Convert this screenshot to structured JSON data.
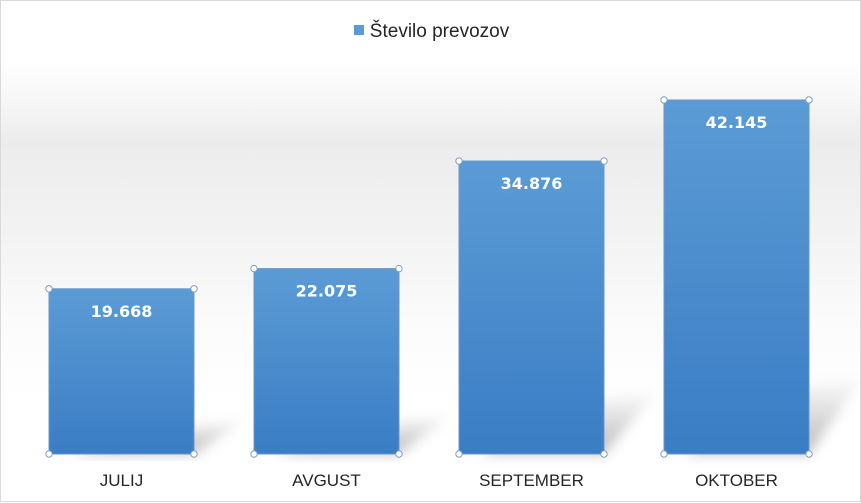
{
  "chart_data": {
    "type": "bar",
    "categories": [
      "JULIJ",
      "AVGUST",
      "SEPTEMBER",
      "OKTOBER"
    ],
    "series": [
      {
        "name": "Število prevozov",
        "values": [
          19668,
          22075,
          34876,
          42145
        ],
        "labels": [
          "19.668",
          "22.075",
          "34.876",
          "42.145"
        ]
      }
    ],
    "legend_position": "top-center",
    "ylim": [
      0,
      50000
    ],
    "grid": false,
    "colors": {
      "bar_top": "#5b9bd5",
      "bar_bottom": "#3a7dc4",
      "bar_stroke": "#6b97c8",
      "data_label": "#ffffff",
      "text": "#262626"
    }
  }
}
